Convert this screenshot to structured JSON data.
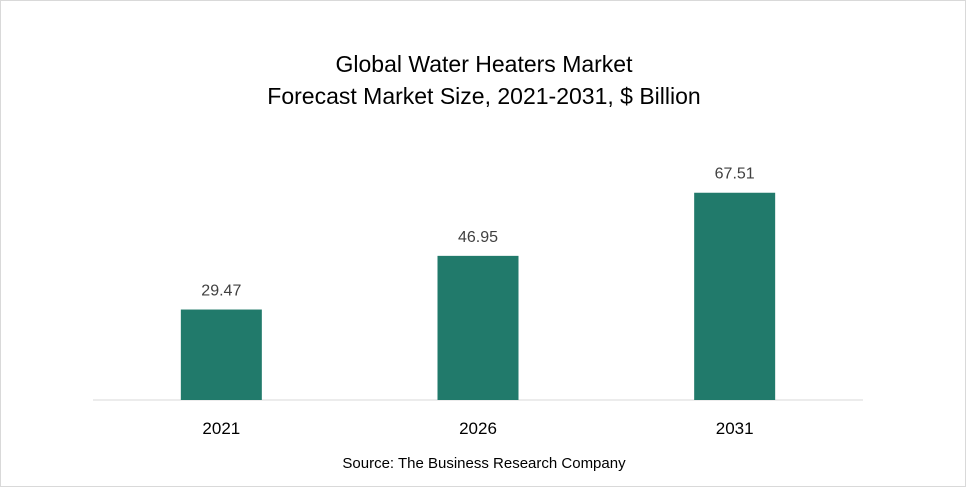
{
  "chart_data": {
    "type": "bar",
    "title": "Global Water Heaters Market",
    "subtitle": "Forecast Market Size, 2021-2031, $ Billion",
    "categories": [
      "2021",
      "2026",
      "2031"
    ],
    "values": [
      29.47,
      46.95,
      67.51
    ],
    "data_labels": [
      "29.47",
      "46.95",
      "67.51"
    ],
    "xlabel": "",
    "ylabel": "",
    "ylim": [
      0,
      100
    ],
    "grid": false,
    "legend": "none",
    "bar_color": "#217a6b",
    "source": "Source: The Business Research Company"
  }
}
